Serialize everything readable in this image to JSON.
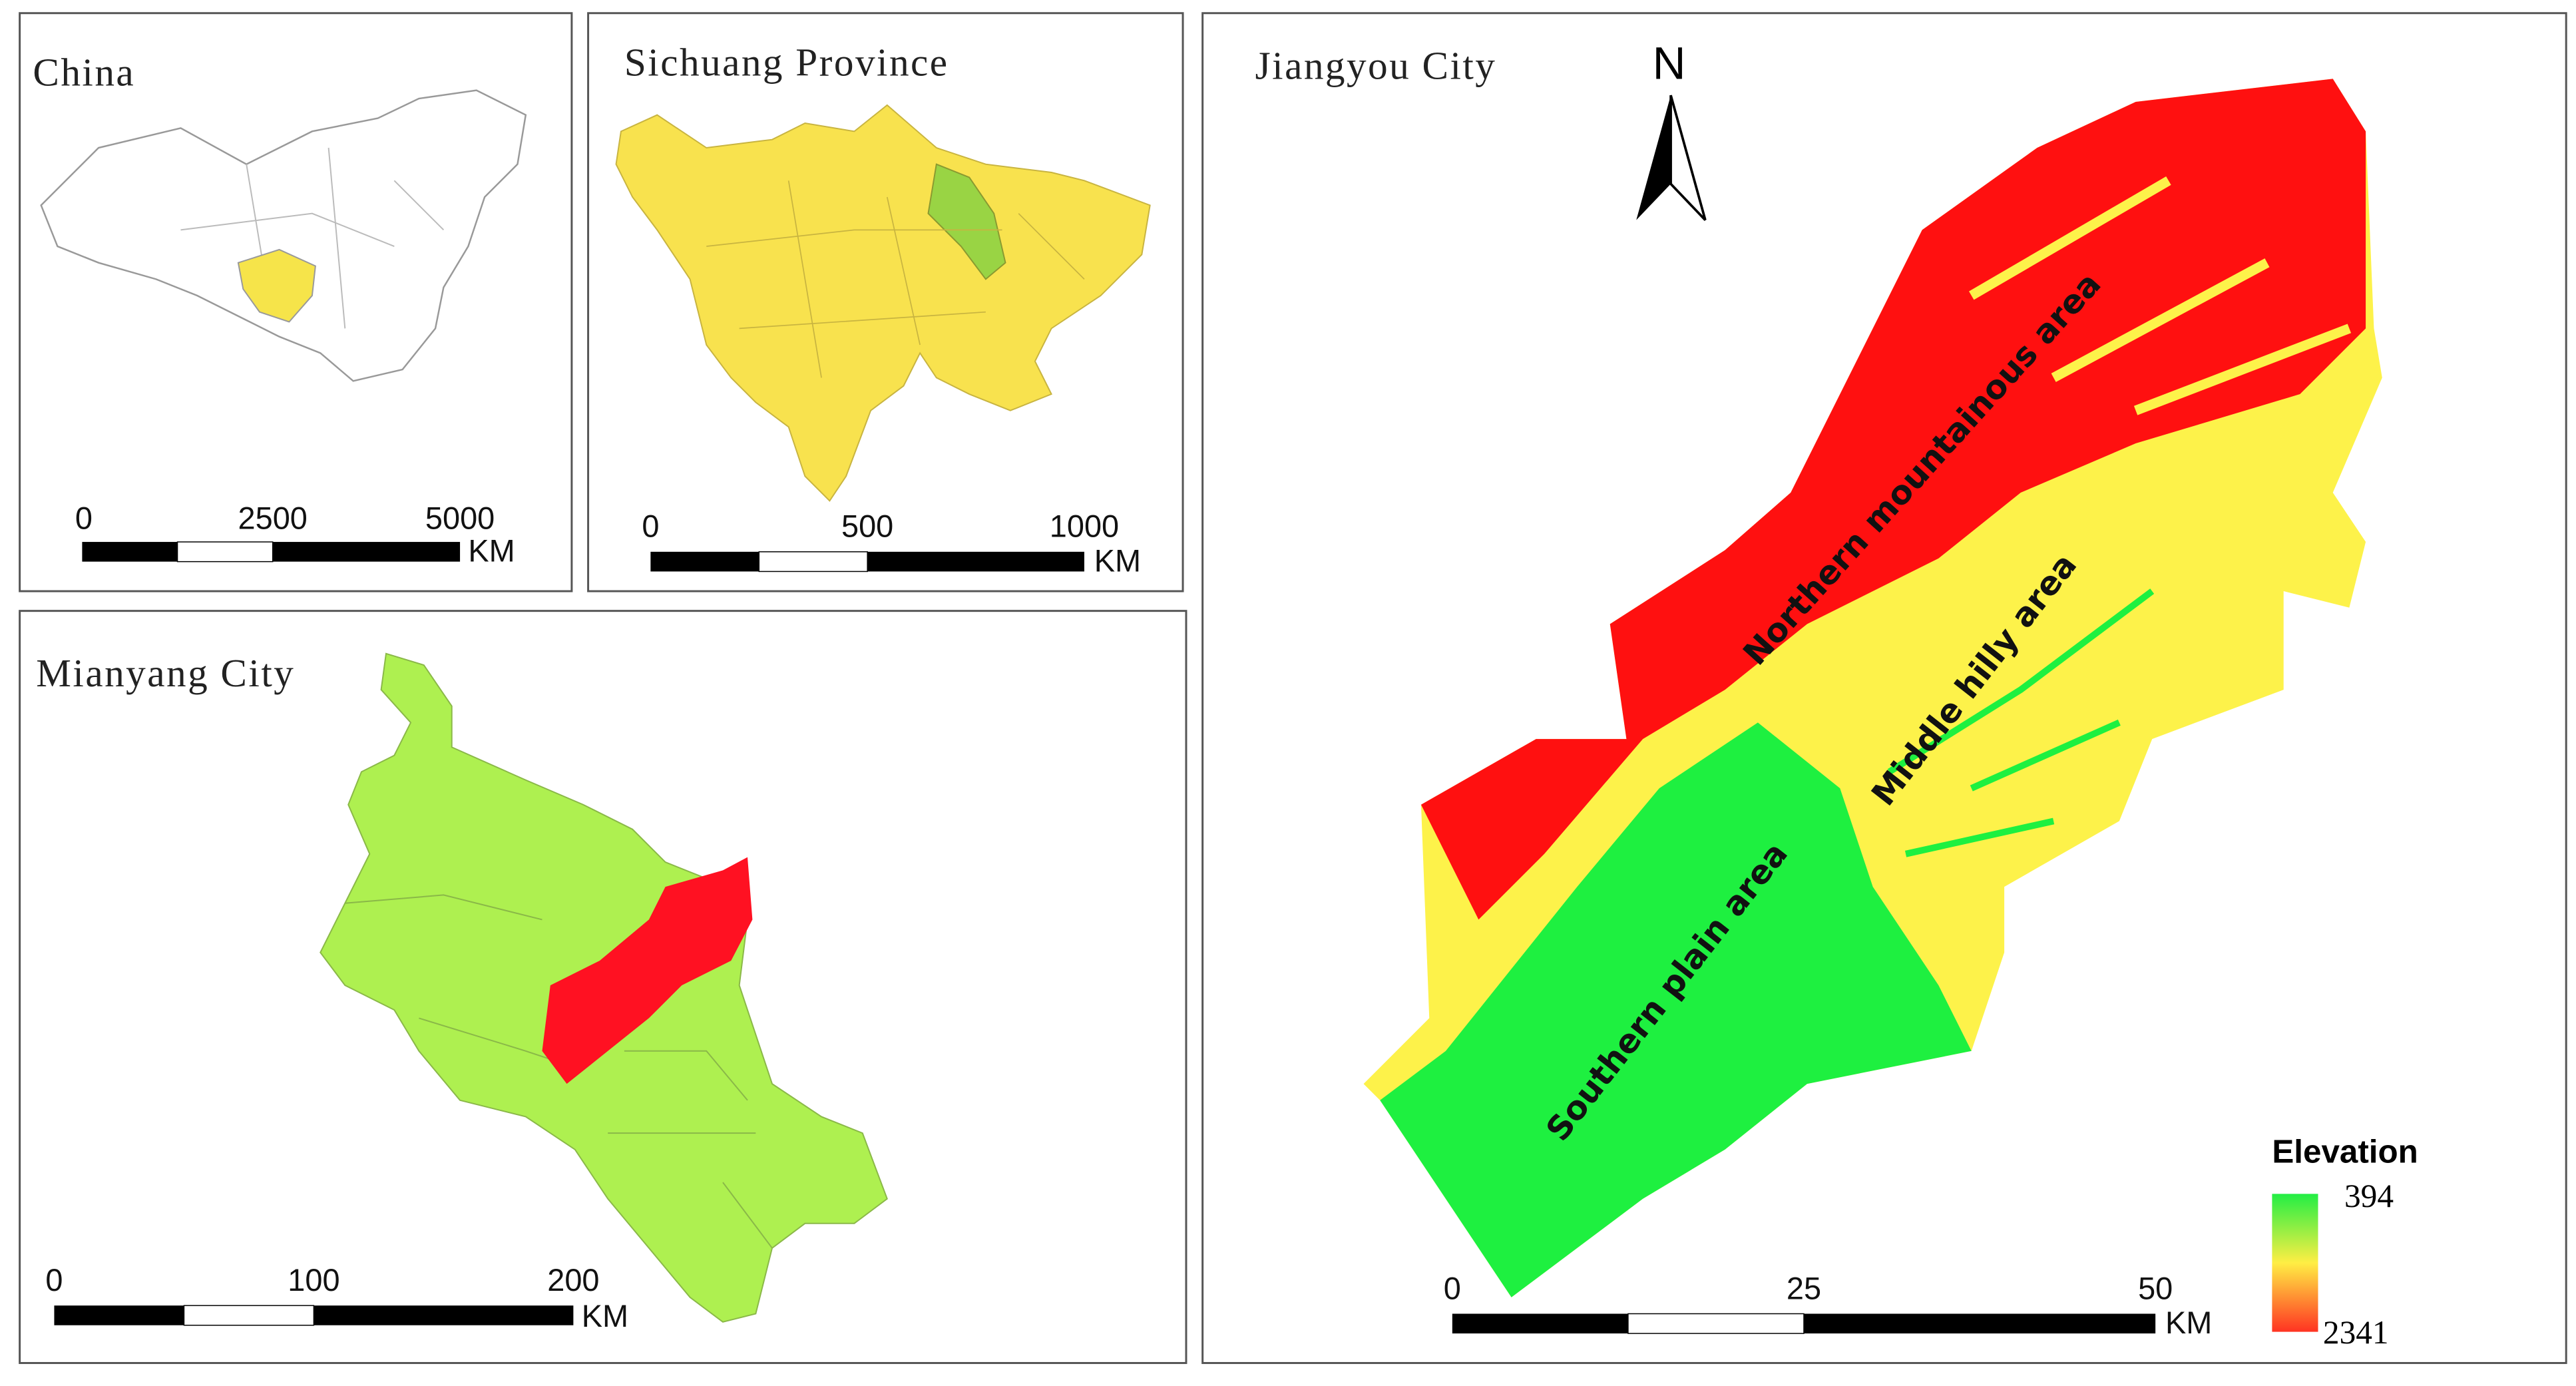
{
  "panels": {
    "china": {
      "title": "China",
      "scale_labels": [
        "0",
        "2500",
        "5000"
      ],
      "unit": "KM"
    },
    "sichuan": {
      "title": "Sichuang Province",
      "scale_labels": [
        "0",
        "500",
        "1000"
      ],
      "unit": "KM"
    },
    "mianyang": {
      "title": "Mianyang City",
      "scale_labels": [
        "0",
        "100",
        "200"
      ],
      "unit": "KM"
    },
    "jiangyou": {
      "title": "Jiangyou City",
      "north": "N",
      "areas": [
        "Northern mountainous area",
        "Middle hilly area",
        "Southern plain area"
      ],
      "scale_labels": [
        "0",
        "25",
        "50"
      ],
      "unit": "KM",
      "legend": {
        "title": "Elevation",
        "top": "394",
        "bottom": "2341"
      }
    }
  }
}
